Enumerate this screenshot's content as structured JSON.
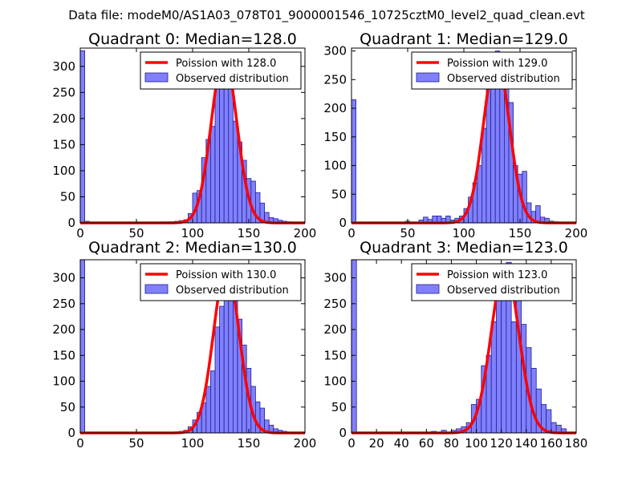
{
  "chart_data": {
    "type": "bar",
    "suptitle": "Data file: modeM0/AS1A03_078T01_9000001546_10725cztM0_level2_quad_clean.evt",
    "colors": {
      "bar_fill": "#8080ff",
      "bar_edge": "#1f1f8f",
      "fit_line": "#ff0000"
    },
    "panels": [
      {
        "title": "Quadrant 0: Median=128.0",
        "xlim": [
          0,
          200
        ],
        "ylim": [
          0,
          335
        ],
        "xticks": [
          0,
          50,
          100,
          150,
          200
        ],
        "yticks": [
          0,
          50,
          100,
          150,
          200,
          250,
          300
        ],
        "xtick_labels": [
          "0",
          "50",
          "100",
          "150",
          "200"
        ],
        "ytick_labels": [
          "0",
          "50",
          "100",
          "150",
          "200",
          "250",
          "300"
        ],
        "legend_position": "top-right",
        "legend": [
          "Poission with 128.0",
          "Observed distribution"
        ],
        "bin_width": 4,
        "bins": [
          0,
          4,
          72,
          76,
          80,
          84,
          88,
          92,
          96,
          100,
          104,
          108,
          112,
          116,
          120,
          124,
          128,
          132,
          136,
          140,
          144,
          148,
          152,
          156,
          160,
          164,
          168,
          172,
          176,
          180,
          184
        ],
        "counts": [
          330,
          3,
          2,
          2,
          2,
          3,
          4,
          6,
          18,
          57,
          62,
          125,
          160,
          185,
          265,
          285,
          320,
          315,
          195,
          155,
          120,
          85,
          80,
          58,
          38,
          20,
          10,
          8,
          5,
          3,
          2
        ],
        "fit_mean": 128.0,
        "fit_peak": 320
      },
      {
        "title": "Quadrant 1: Median=129.0",
        "xlim": [
          0,
          200
        ],
        "ylim": [
          0,
          305
        ],
        "xticks": [
          0,
          50,
          100,
          150,
          200
        ],
        "yticks": [
          0,
          50,
          100,
          150,
          200,
          250,
          300
        ],
        "xtick_labels": [
          "0",
          "50",
          "100",
          "150",
          "200"
        ],
        "ytick_labels": [
          "0",
          "50",
          "100",
          "150",
          "200",
          "250",
          "300"
        ],
        "legend_position": "top-right",
        "legend": [
          "Poission with 129.0",
          "Observed distribution"
        ],
        "bin_width": 4,
        "bins": [
          0,
          48,
          60,
          64,
          68,
          72,
          76,
          80,
          84,
          88,
          92,
          96,
          100,
          104,
          108,
          112,
          116,
          120,
          124,
          128,
          132,
          136,
          140,
          144,
          148,
          152,
          156,
          160,
          164,
          168,
          172,
          176,
          180
        ],
        "counts": [
          215,
          3,
          5,
          10,
          6,
          12,
          12,
          8,
          12,
          5,
          8,
          12,
          25,
          45,
          70,
          100,
          165,
          235,
          265,
          300,
          255,
          280,
          210,
          100,
          85,
          90,
          35,
          20,
          30,
          10,
          8,
          3,
          2
        ],
        "fit_mean": 129.0,
        "fit_peak": 290
      },
      {
        "title": "Quadrant 2: Median=130.0",
        "xlim": [
          0,
          200
        ],
        "ylim": [
          0,
          335
        ],
        "xticks": [
          0,
          50,
          100,
          150,
          200
        ],
        "yticks": [
          0,
          50,
          100,
          150,
          200,
          250,
          300
        ],
        "xtick_labels": [
          "0",
          "50",
          "100",
          "150",
          "200"
        ],
        "ytick_labels": [
          "0",
          "50",
          "100",
          "150",
          "200",
          "250",
          "300"
        ],
        "legend_position": "top-right",
        "legend": [
          "Poission with 130.0",
          "Observed distribution"
        ],
        "bin_width": 4,
        "bins": [
          0,
          84,
          88,
          92,
          96,
          100,
          104,
          108,
          112,
          116,
          120,
          124,
          128,
          132,
          136,
          140,
          144,
          148,
          152,
          156,
          160,
          164,
          168,
          172,
          176,
          180
        ],
        "counts": [
          335,
          2,
          3,
          5,
          12,
          25,
          40,
          58,
          90,
          120,
          205,
          245,
          270,
          310,
          310,
          220,
          170,
          125,
          90,
          60,
          48,
          25,
          15,
          8,
          5,
          3
        ],
        "fit_mean": 130.0,
        "fit_peak": 320
      },
      {
        "title": "Quadrant 3: Median=123.0",
        "xlim": [
          0,
          180
        ],
        "ylim": [
          0,
          335
        ],
        "xticks": [
          0,
          20,
          40,
          60,
          80,
          100,
          120,
          140,
          160,
          180
        ],
        "yticks": [
          0,
          50,
          100,
          150,
          200,
          250,
          300
        ],
        "xtick_labels": [
          "0",
          "20",
          "40",
          "60",
          "80",
          "100",
          "120",
          "140",
          "160",
          "180"
        ],
        "ytick_labels": [
          "0",
          "50",
          "100",
          "150",
          "200",
          "250",
          "300"
        ],
        "legend_position": "top-right",
        "legend": [
          "Poission with 123.0",
          "Observed distribution"
        ],
        "bin_width": 4,
        "bins": [
          0,
          64,
          72,
          80,
          84,
          88,
          92,
          96,
          100,
          104,
          108,
          112,
          116,
          120,
          124,
          128,
          132,
          136,
          140,
          144,
          148,
          152,
          156,
          160,
          164,
          168
        ],
        "counts": [
          335,
          3,
          5,
          5,
          8,
          12,
          20,
          55,
          65,
          130,
          150,
          215,
          265,
          265,
          330,
          215,
          295,
          210,
          165,
          125,
          85,
          55,
          45,
          20,
          15,
          8
        ],
        "fit_mean": 123.0,
        "fit_peak": 320
      }
    ]
  }
}
